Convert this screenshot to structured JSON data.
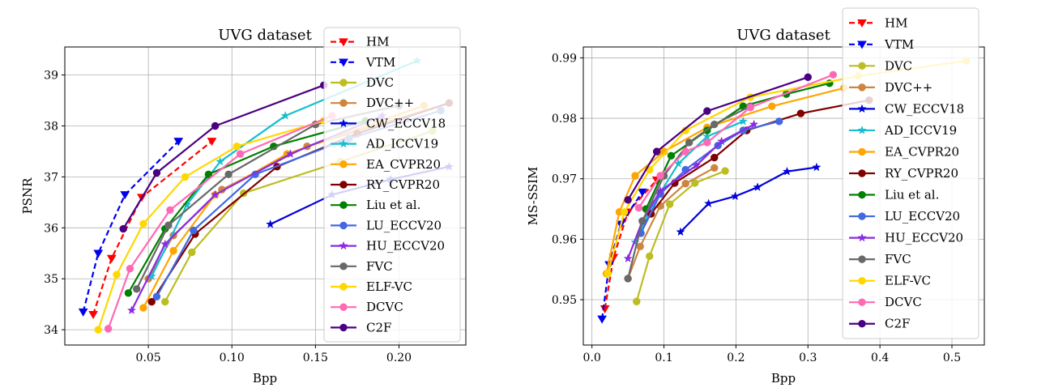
{
  "chart_data": [
    {
      "type": "line",
      "title": "UVG dataset",
      "xlabel": "Bpp",
      "ylabel": "PSNR",
      "xlim": [
        0.0,
        0.24
      ],
      "ylim": [
        33.7,
        39.55
      ],
      "xticks": [
        0.05,
        0.1,
        0.15,
        0.2
      ],
      "xtick_labels": [
        "0.05",
        "0.10",
        "0.15",
        "0.20"
      ],
      "yticks": [
        34,
        35,
        36,
        37,
        38,
        39
      ],
      "ytick_labels": [
        "34",
        "35",
        "36",
        "37",
        "38",
        "39"
      ],
      "grid": true,
      "legend_position": "right",
      "series": [
        {
          "name": "HM",
          "color": "#ff0000",
          "dash": true,
          "marker": "tri",
          "x": [
            0.017,
            0.028,
            0.046,
            0.088
          ],
          "y": [
            34.3,
            35.4,
            36.6,
            37.7
          ]
        },
        {
          "name": "VTM",
          "color": "#0000ee",
          "dash": true,
          "marker": "tri",
          "x": [
            0.011,
            0.02,
            0.036,
            0.068
          ],
          "y": [
            34.35,
            35.5,
            36.65,
            37.7
          ]
        },
        {
          "name": "DVC",
          "color": "#bcbd22",
          "marker": "circle",
          "x": [
            0.06,
            0.076,
            0.107,
            0.165,
            0.22
          ],
          "y": [
            34.55,
            35.52,
            36.68,
            37.3,
            37.9
          ]
        },
        {
          "name": "DVC++",
          "color": "#cd853f",
          "marker": "circle",
          "x": [
            0.05,
            0.065,
            0.094,
            0.145,
            0.23
          ],
          "y": [
            35.0,
            35.85,
            36.75,
            37.6,
            38.45
          ]
        },
        {
          "name": "CW_ECCV18",
          "color": "#0000dd",
          "marker": "star",
          "x": [
            0.123,
            0.16,
            0.195,
            0.23
          ],
          "y": [
            36.07,
            36.65,
            36.95,
            37.2
          ]
        },
        {
          "name": "AD_ICCV19",
          "color": "#17becf",
          "marker": "star",
          "x": [
            0.052,
            0.073,
            0.093,
            0.132,
            0.211
          ],
          "y": [
            35.05,
            36.45,
            37.3,
            38.2,
            39.28
          ]
        },
        {
          "name": "EA_CVPR20",
          "color": "#ffa500",
          "marker": "circle",
          "x": [
            0.047,
            0.065,
            0.09,
            0.133,
            0.215
          ],
          "y": [
            34.43,
            35.55,
            36.65,
            37.45,
            38.4
          ]
        },
        {
          "name": "RY_CVPR20",
          "color": "#800000",
          "marker": "circle",
          "x": [
            0.052,
            0.078,
            0.127,
            0.175,
            0.23
          ],
          "y": [
            34.55,
            35.88,
            37.2,
            37.85,
            38.45
          ]
        },
        {
          "name": "Liu et al.",
          "color": "#008000",
          "marker": "circle",
          "x": [
            0.038,
            0.06,
            0.086,
            0.125,
            0.18
          ],
          "y": [
            34.72,
            35.98,
            37.05,
            37.6,
            38.1
          ]
        },
        {
          "name": "LU_ECCV20",
          "color": "#4169e1",
          "marker": "circle",
          "x": [
            0.055,
            0.077,
            0.114,
            0.17,
            0.225
          ],
          "y": [
            34.65,
            35.95,
            37.05,
            37.75,
            38.3
          ]
        },
        {
          "name": "HU_ECCV20",
          "color": "#8a2be2",
          "marker": "star",
          "x": [
            0.04,
            0.06,
            0.09,
            0.135,
            0.19
          ],
          "y": [
            34.38,
            35.68,
            36.65,
            37.45,
            38.2
          ]
        },
        {
          "name": "FVC",
          "color": "#696969",
          "marker": "circle",
          "x": [
            0.043,
            0.062,
            0.098,
            0.15,
            0.2
          ],
          "y": [
            34.8,
            36.05,
            37.05,
            38.03,
            38.4
          ]
        },
        {
          "name": "ELF-VC",
          "color": "#ffd700",
          "marker": "circle",
          "x": [
            0.02,
            0.031,
            0.047,
            0.072,
            0.103,
            0.155
          ],
          "y": [
            34.0,
            35.08,
            36.08,
            37.0,
            37.6,
            38.1
          ]
        },
        {
          "name": "DCVC",
          "color": "#ff69b4",
          "marker": "circle",
          "x": [
            0.026,
            0.039,
            0.063,
            0.105,
            0.16
          ],
          "y": [
            34.02,
            35.2,
            36.35,
            37.45,
            38.2
          ]
        },
        {
          "name": "C2F",
          "color": "#4b0082",
          "marker": "circle",
          "x": [
            0.035,
            0.055,
            0.09,
            0.155
          ],
          "y": [
            35.98,
            37.08,
            38.0,
            38.8
          ]
        }
      ]
    },
    {
      "type": "line",
      "title": "UVG dataset",
      "xlabel": "Bpp",
      "ylabel": "MS-SSIM",
      "xlim": [
        -0.012,
        0.545
      ],
      "ylim": [
        0.9425,
        0.9918
      ],
      "xticks": [
        0.0,
        0.1,
        0.2,
        0.3,
        0.4,
        0.5
      ],
      "xtick_labels": [
        "0.0",
        "0.1",
        "0.2",
        "0.3",
        "0.4",
        "0.5"
      ],
      "yticks": [
        0.95,
        0.96,
        0.97,
        0.98,
        0.99
      ],
      "ytick_labels": [
        "0.95",
        "0.96",
        "0.97",
        "0.98",
        "0.99"
      ],
      "grid": true,
      "legend_position": "right",
      "series": [
        {
          "name": "HM",
          "color": "#ff0000",
          "dash": true,
          "marker": "tri",
          "x": [
            0.018,
            0.03,
            0.05,
            0.09
          ],
          "y": [
            0.9485,
            0.957,
            0.9645,
            0.9698
          ]
        },
        {
          "name": "VTM",
          "color": "#0000ee",
          "dash": true,
          "marker": "tri",
          "x": [
            0.014,
            0.024,
            0.04,
            0.07
          ],
          "y": [
            0.9468,
            0.9558,
            0.9625,
            0.9678
          ]
        },
        {
          "name": "DVC",
          "color": "#bcbd22",
          "marker": "circle",
          "x": [
            0.062,
            0.08,
            0.108,
            0.143,
            0.185
          ],
          "y": [
            0.9497,
            0.9572,
            0.9658,
            0.9693,
            0.9713
          ]
        },
        {
          "name": "DVC++",
          "color": "#cd853f",
          "marker": "circle",
          "x": [
            0.05,
            0.067,
            0.095,
            0.13,
            0.17
          ],
          "y": [
            0.9535,
            0.9588,
            0.9655,
            0.9692,
            0.9718
          ]
        },
        {
          "name": "CW_ECCV18",
          "color": "#0000dd",
          "marker": "star",
          "x": [
            0.123,
            0.162,
            0.199,
            0.23,
            0.271,
            0.312
          ],
          "y": [
            0.9612,
            0.9659,
            0.9671,
            0.9686,
            0.9712,
            0.9719
          ]
        },
        {
          "name": "AD_ICCV19",
          "color": "#17becf",
          "marker": "star",
          "x": [
            0.06,
            0.085,
            0.12,
            0.16,
            0.21
          ],
          "y": [
            0.9595,
            0.9658,
            0.9725,
            0.977,
            0.9795
          ]
        },
        {
          "name": "EA_CVPR20",
          "color": "#ffa500",
          "marker": "circle",
          "x": [
            0.02,
            0.038,
            0.06,
            0.1,
            0.16,
            0.25,
            0.35
          ],
          "y": [
            0.9543,
            0.9645,
            0.9705,
            0.9745,
            0.9785,
            0.982,
            0.985
          ]
        },
        {
          "name": "RY_CVPR20",
          "color": "#800000",
          "marker": "circle",
          "x": [
            0.082,
            0.115,
            0.17,
            0.215,
            0.29,
            0.385
          ],
          "y": [
            0.9642,
            0.9693,
            0.9735,
            0.978,
            0.9808,
            0.983
          ]
        },
        {
          "name": "Liu et al.",
          "color": "#008000",
          "marker": "circle",
          "x": [
            0.075,
            0.11,
            0.16,
            0.21,
            0.27,
            0.33
          ],
          "y": [
            0.965,
            0.9738,
            0.978,
            0.982,
            0.984,
            0.9858
          ]
        },
        {
          "name": "LU_ECCV20",
          "color": "#4169e1",
          "marker": "circle",
          "x": [
            0.068,
            0.095,
            0.13,
            0.175,
            0.21,
            0.26
          ],
          "y": [
            0.961,
            0.9675,
            0.9715,
            0.9755,
            0.978,
            0.9795
          ]
        },
        {
          "name": "HU_ECCV20",
          "color": "#8a2be2",
          "marker": "star",
          "x": [
            0.05,
            0.07,
            0.095,
            0.145,
            0.18,
            0.225
          ],
          "y": [
            0.9568,
            0.963,
            0.968,
            0.9722,
            0.9762,
            0.979
          ]
        },
        {
          "name": "FVC",
          "color": "#696969",
          "marker": "circle",
          "x": [
            0.05,
            0.07,
            0.1,
            0.135,
            0.17,
            0.22
          ],
          "y": [
            0.9535,
            0.963,
            0.9705,
            0.976,
            0.979,
            0.982
          ]
        },
        {
          "name": "ELF-VC",
          "color": "#ffd700",
          "marker": "circle",
          "x": [
            0.022,
            0.045,
            0.08,
            0.13,
            0.22,
            0.37,
            0.52
          ],
          "y": [
            0.9543,
            0.9645,
            0.9715,
            0.978,
            0.9835,
            0.987,
            0.9895
          ]
        },
        {
          "name": "DCVC",
          "color": "#ff69b4",
          "marker": "circle",
          "x": [
            0.065,
            0.095,
            0.13,
            0.16,
            0.22,
            0.335
          ],
          "y": [
            0.9652,
            0.9705,
            0.9745,
            0.976,
            0.9818,
            0.9872
          ]
        },
        {
          "name": "C2F",
          "color": "#4b0082",
          "marker": "circle",
          "x": [
            0.05,
            0.09,
            0.16,
            0.3
          ],
          "y": [
            0.9665,
            0.9745,
            0.9812,
            0.9868
          ]
        }
      ]
    }
  ]
}
